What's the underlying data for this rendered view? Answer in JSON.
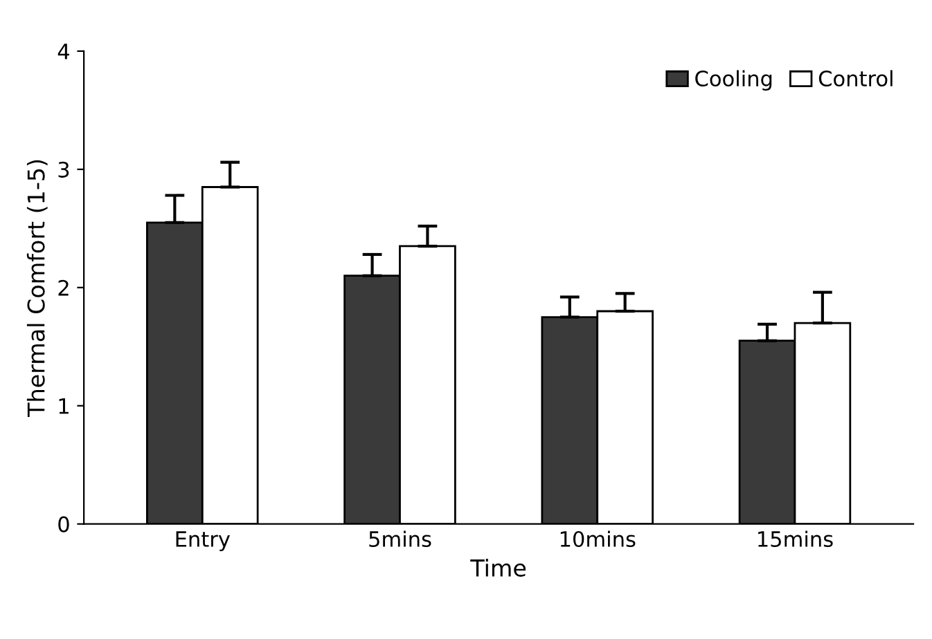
{
  "chart_data": {
    "type": "bar",
    "xlabel": "Time",
    "ylabel": "Thermal Comfort (1-5)",
    "categories": [
      "Entry",
      "5mins",
      "10mins",
      "15mins"
    ],
    "series": [
      {
        "name": "Cooling",
        "color": "#3a3a3a",
        "values": [
          2.55,
          2.1,
          1.75,
          1.55
        ],
        "errors": [
          [
            2.55,
            2.78
          ],
          [
            2.1,
            2.28
          ],
          [
            1.75,
            1.92
          ],
          [
            1.55,
            1.69
          ]
        ]
      },
      {
        "name": "Control",
        "color": "#ffffff",
        "values": [
          2.85,
          2.35,
          1.8,
          1.7
        ],
        "errors": [
          [
            2.85,
            3.06
          ],
          [
            2.35,
            2.52
          ],
          [
            1.8,
            1.95
          ],
          [
            1.7,
            1.96
          ]
        ]
      }
    ],
    "ylim": [
      0,
      4
    ],
    "yticks": [
      0,
      1,
      2,
      3,
      4
    ],
    "grid": false,
    "legend": "top right"
  }
}
